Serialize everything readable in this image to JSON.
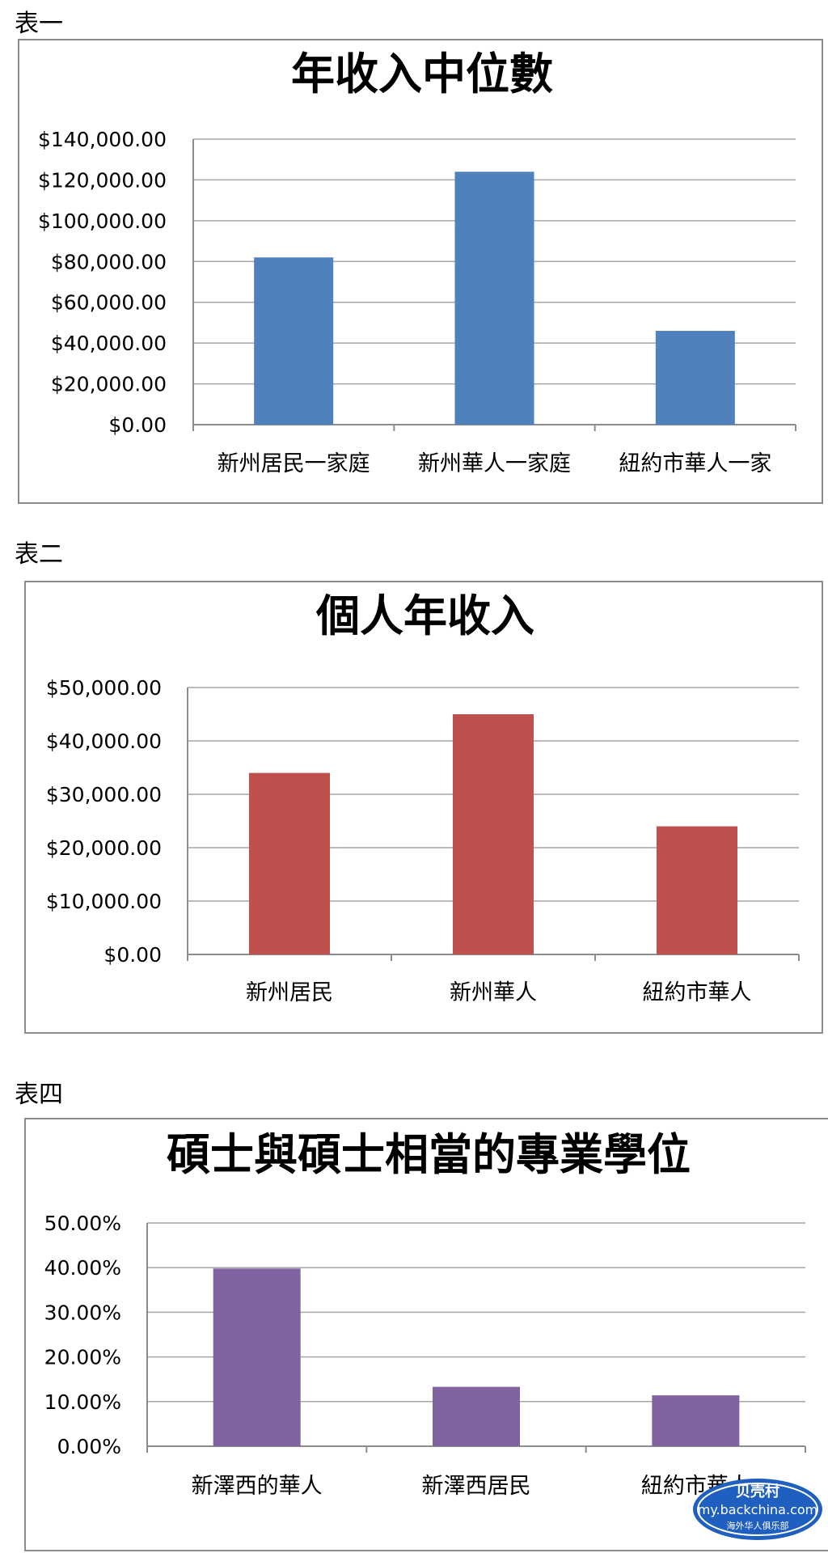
{
  "sections": [
    {
      "label": "表一"
    },
    {
      "label": "表二"
    },
    {
      "label": "表四"
    }
  ],
  "chart_data": [
    {
      "type": "bar",
      "title": "年收入中位數",
      "categories": [
        "新州居民一家庭",
        "新州華人一家庭",
        "紐約市華人一家"
      ],
      "values": [
        82000,
        124000,
        46000
      ],
      "ylim": [
        0,
        140000
      ],
      "yticks": [
        0,
        20000,
        40000,
        60000,
        80000,
        100000,
        120000,
        140000
      ],
      "ytick_labels": [
        "$0.00",
        "$20,000.00",
        "$40,000.00",
        "$60,000.00",
        "$80,000.00",
        "$100,000.00",
        "$120,000.00",
        "$140,000.00"
      ],
      "color": "#4f81bd",
      "grid": true,
      "legend": "none"
    },
    {
      "type": "bar",
      "title": "個人年收入",
      "categories": [
        "新州居民",
        "新州華人",
        "紐約市華人"
      ],
      "values": [
        34000,
        45000,
        24000
      ],
      "ylim": [
        0,
        50000
      ],
      "yticks": [
        0,
        10000,
        20000,
        30000,
        40000,
        50000
      ],
      "ytick_labels": [
        "$0.00",
        "$10,000.00",
        "$20,000.00",
        "$30,000.00",
        "$40,000.00",
        "$50,000.00"
      ],
      "color": "#c0504d",
      "grid": true,
      "legend": "none"
    },
    {
      "type": "bar",
      "title": "碩士與碩士相當的專業學位",
      "categories": [
        "新澤西的華人",
        "新澤西居民",
        "紐約市華人"
      ],
      "values": [
        39.8,
        13.3,
        11.4
      ],
      "ylim": [
        0,
        50
      ],
      "yticks": [
        0,
        10,
        20,
        30,
        40,
        50
      ],
      "ytick_labels": [
        "0.00%",
        "10.00%",
        "20.00%",
        "30.00%",
        "40.00%",
        "50.00%"
      ],
      "color": "#8064a2",
      "grid": true,
      "legend": "none"
    }
  ],
  "watermark": {
    "line1": "贝壳村",
    "line2": "my.backchina.com",
    "line3": "海外华人俱乐部",
    "color": "#1f5fbf"
  }
}
